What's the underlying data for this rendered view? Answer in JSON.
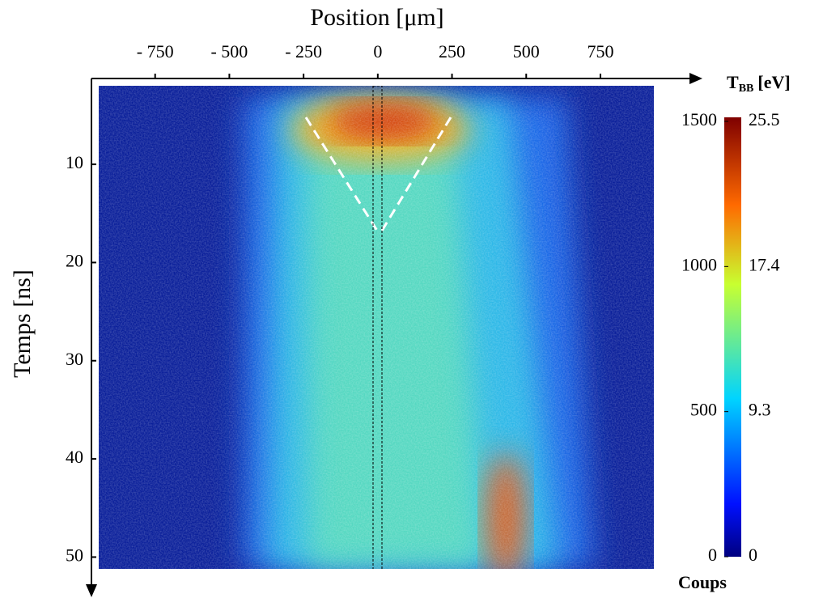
{
  "chart_data": {
    "type": "heatmap",
    "xlabel": "Position [μm]",
    "ylabel": "Temps [ns]",
    "xlim": [
      -940,
      930
    ],
    "xticks": [
      {
        "value": -750,
        "label": "- 750"
      },
      {
        "value": -500,
        "label": "- 500"
      },
      {
        "value": -250,
        "label": "- 250"
      },
      0,
      250,
      500,
      750
    ],
    "ylim": [
      2,
      51.2
    ],
    "yticks": [
      10,
      20,
      30,
      40,
      50
    ],
    "y_inverted": true,
    "colorbar": {
      "label": "Coups",
      "clim": [
        0,
        1500
      ],
      "ticks": [
        0,
        500,
        1000,
        1500
      ],
      "second_label": {
        "main": "T",
        "sub": "BB",
        "unit": "[eV]"
      },
      "second_ticks": [
        0,
        9.3,
        17.4,
        25.5
      ]
    }
  }
}
